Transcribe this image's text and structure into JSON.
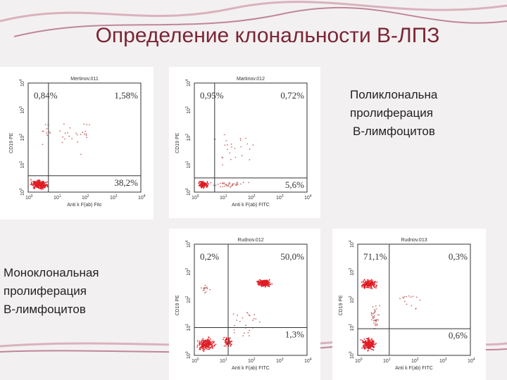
{
  "title": "Определение клональности В-ЛПЗ",
  "polyclonal_caption": [
    "Поликлональна",
    "пролиферация",
    "В-лимфоцитов"
  ],
  "monoclonal_caption": [
    "Моноклональная",
    "пролиферация",
    "В-лимфоцитов"
  ],
  "ticks": [
    {
      "base": "10",
      "exp": "0"
    },
    {
      "base": "10",
      "exp": "1"
    },
    {
      "base": "10",
      "exp": "2"
    },
    {
      "base": "10",
      "exp": "3"
    },
    {
      "base": "10",
      "exp": "4"
    }
  ],
  "plots": [
    {
      "file": "Mertinov.011",
      "y_label": "CD19 PE",
      "x_label": "Anti k F(ab) Fitc",
      "upper_left": "0,84%",
      "upper_right": "1,58%",
      "lower_right": "38,2%"
    },
    {
      "file": "Martinov.012",
      "y_label": "CD19 PE",
      "x_label": "Anti k F(ab) FITC",
      "upper_left": "0,95%",
      "upper_right": "0,72%",
      "lower_right": "5,6%"
    },
    {
      "file": "Rudnov.012",
      "y_label": "CD19 PE",
      "x_label": "Anti k F(ab) FITC",
      "upper_left": "0,2%",
      "upper_right": "50,0%",
      "lower_right": "1,3%"
    },
    {
      "file": "Rudnov.013",
      "y_label": "CD19 PE",
      "x_label": "Anti k F(ab) FITC",
      "upper_left": "71,1%",
      "upper_right": "0,3%",
      "lower_right": "0,6%"
    }
  ]
}
